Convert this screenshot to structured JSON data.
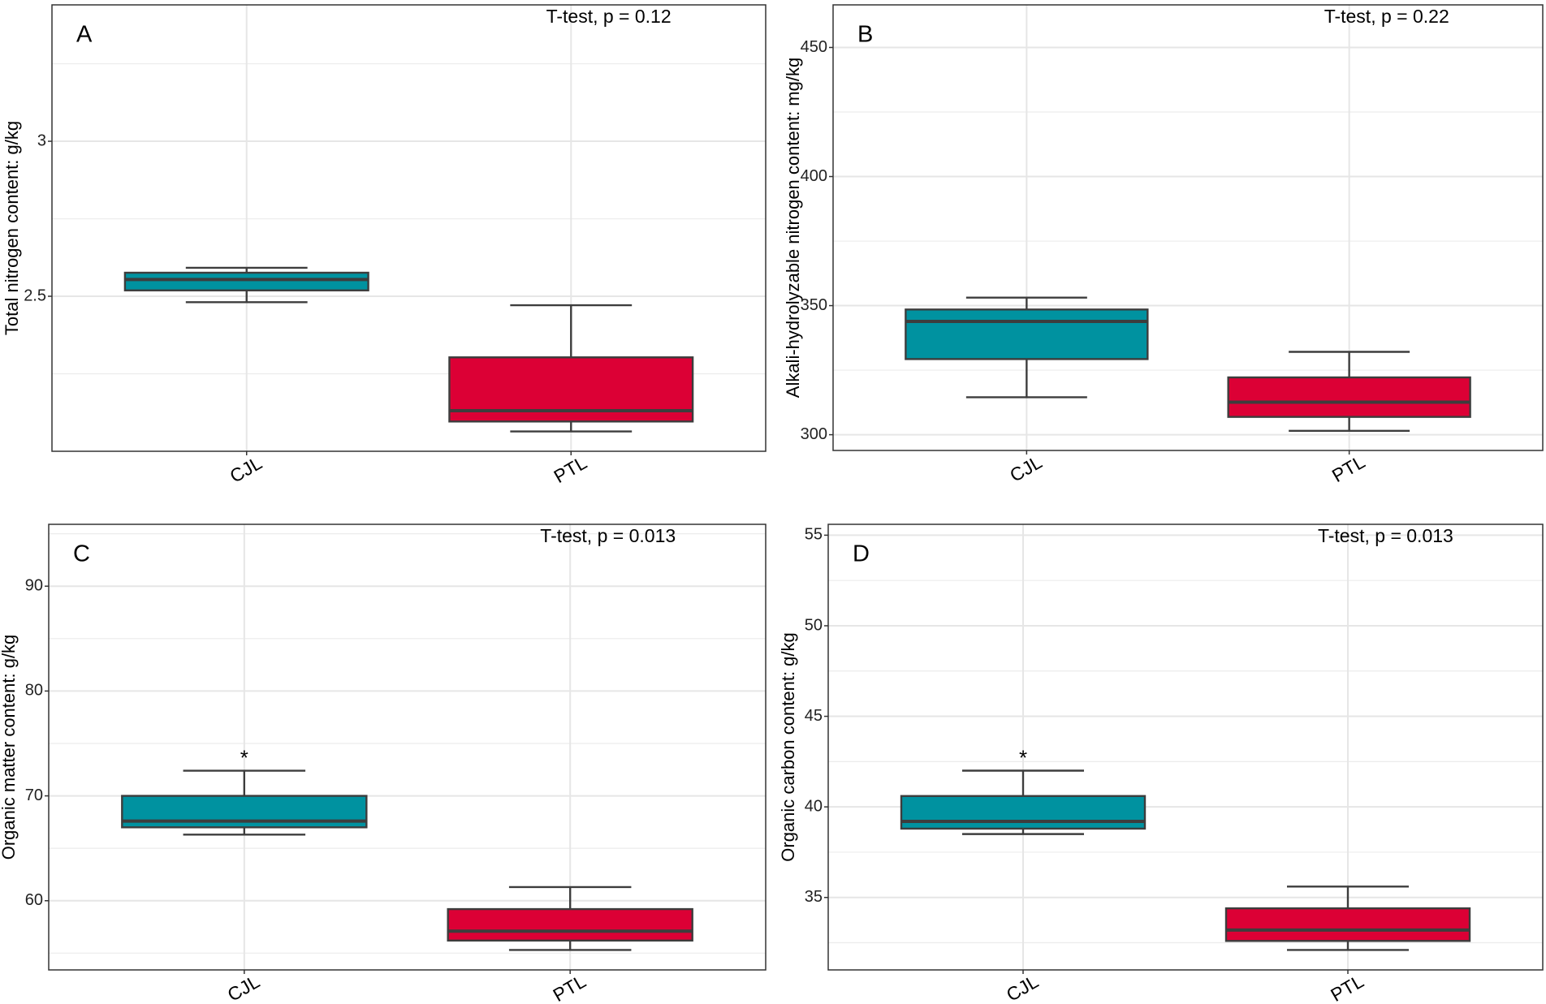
{
  "chart_data": [
    {
      "type": "box",
      "panel_label": "A",
      "annotation": "T-test, p = 0.12",
      "y_label": "Total nitrogen content: g/kg",
      "categories": [
        "CJL",
        "PTL"
      ],
      "ylim": [
        2.0,
        3.44
      ],
      "yticks": [
        2.5,
        3.0
      ],
      "grid": true,
      "boxes": [
        {
          "color": "#0092a0",
          "min": 2.481,
          "q1": 2.519,
          "median": 2.554,
          "q3": 2.576,
          "max": 2.592
        },
        {
          "color": "#dc0035",
          "min": 2.064,
          "q1": 2.096,
          "median": 2.131,
          "q3": 2.303,
          "max": 2.471
        }
      ]
    },
    {
      "type": "box",
      "panel_label": "B",
      "annotation": "T-test, p = 0.22",
      "y_label": "Alkali-hydrolyzable nitrogen content: mg/kg",
      "categories": [
        "CJL",
        "PTL"
      ],
      "ylim": [
        293.9,
        466.5
      ],
      "yticks": [
        300,
        350,
        400,
        450
      ],
      "grid": true,
      "boxes": [
        {
          "color": "#0092a0",
          "min": 314.5,
          "q1": 329.3,
          "median": 343.9,
          "q3": 348.5,
          "max": 353.1
        },
        {
          "color": "#dc0035",
          "min": 301.5,
          "q1": 306.9,
          "median": 312.6,
          "q3": 322.2,
          "max": 332.1
        }
      ]
    },
    {
      "type": "box",
      "panel_label": "C",
      "annotation": "T-test, p = 0.013",
      "y_label": "Organic matter content: g/kg",
      "categories": [
        "CJL",
        "PTL"
      ],
      "ylim": [
        53.4,
        95.9
      ],
      "yticks": [
        60,
        70,
        80,
        90
      ],
      "grid": true,
      "significance": [
        "*",
        null
      ],
      "boxes": [
        {
          "color": "#0092a0",
          "min": 66.3,
          "q1": 67.0,
          "median": 67.6,
          "q3": 70.0,
          "max": 72.4
        },
        {
          "color": "#dc0035",
          "min": 55.3,
          "q1": 56.2,
          "median": 57.1,
          "q3": 59.2,
          "max": 61.3
        }
      ]
    },
    {
      "type": "box",
      "panel_label": "D",
      "annotation": "T-test, p = 0.013",
      "y_label": "Organic carbon content: g/kg",
      "categories": [
        "CJL",
        "PTL"
      ],
      "ylim": [
        31.0,
        55.6
      ],
      "yticks": [
        35,
        40,
        45,
        50,
        55
      ],
      "grid": true,
      "significance": [
        "*",
        null
      ],
      "boxes": [
        {
          "color": "#0092a0",
          "min": 38.5,
          "q1": 38.8,
          "median": 39.2,
          "q3": 40.6,
          "max": 42.0
        },
        {
          "color": "#dc0035",
          "min": 32.1,
          "q1": 32.6,
          "median": 33.2,
          "q3": 34.4,
          "max": 35.6
        }
      ]
    }
  ]
}
